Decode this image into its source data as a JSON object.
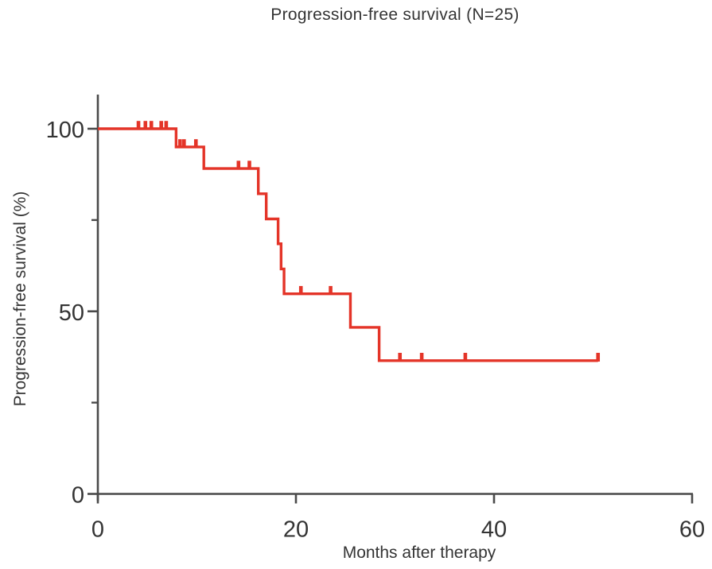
{
  "chart_data": {
    "type": "line",
    "subtype": "kaplan-meier-step",
    "title": "Progression-free survival (N=25)",
    "xlabel": "Months after therapy",
    "ylabel": "Progression-free survival (%)",
    "n_patients": 25,
    "xlim": [
      0,
      60
    ],
    "ylim": [
      0,
      100
    ],
    "x_ticks": [
      0,
      20,
      40,
      60
    ],
    "y_ticks_major": [
      0,
      50,
      100
    ],
    "y_ticks_minor": [
      25,
      75
    ],
    "grid": false,
    "legend_position": "none",
    "series": [
      {
        "name": "Progression-free survival",
        "steps": [
          {
            "t": 0,
            "s": 100
          },
          {
            "t": 7.9,
            "s": 95.0
          },
          {
            "t": 10.7,
            "s": 89.1
          },
          {
            "t": 16.2,
            "s": 82.2
          },
          {
            "t": 17.0,
            "s": 75.3
          },
          {
            "t": 18.2,
            "s": 68.5
          },
          {
            "t": 18.5,
            "s": 61.6
          },
          {
            "t": 18.8,
            "s": 54.8
          },
          {
            "t": 25.5,
            "s": 45.6
          },
          {
            "t": 28.4,
            "s": 36.5
          }
        ],
        "end_time": 50.5,
        "censor_times": [
          4.1,
          4.8,
          5.4,
          6.4,
          6.9,
          8.3,
          8.7,
          9.9,
          14.2,
          15.3,
          20.5,
          23.5,
          30.5,
          32.7,
          37.1,
          50.5
        ]
      }
    ],
    "colors": {
      "curve": "#e43428",
      "axis": "#4a4a4a",
      "text": "#343434",
      "background": "#ffffff"
    }
  }
}
